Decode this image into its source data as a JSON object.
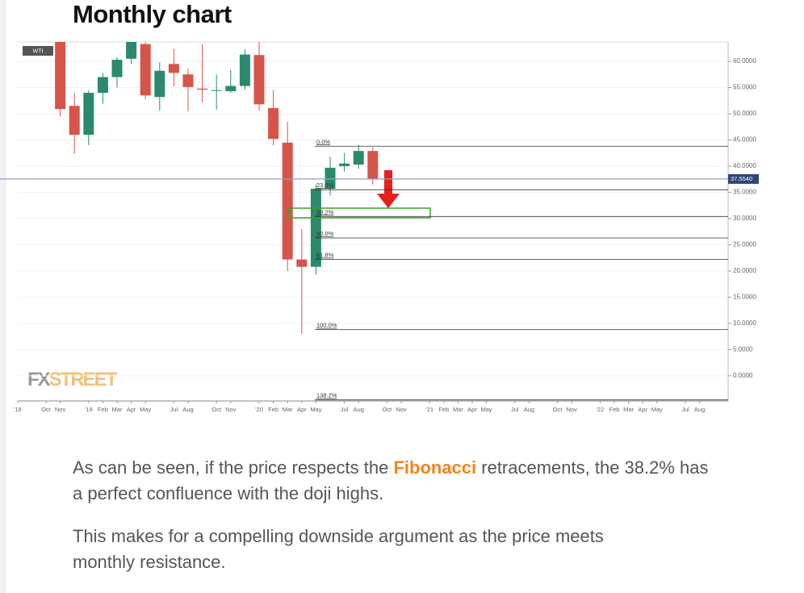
{
  "heading": "Monthly chart",
  "chart_data": {
    "type": "candlestick",
    "badge": "WTI",
    "watermark": {
      "left": "FX",
      "right": "STREET"
    },
    "categories": [
      "'18",
      null,
      "Oct",
      "Nov",
      null,
      "'19",
      "Feb",
      "Mar",
      "Apr",
      "May",
      null,
      "Jul",
      "Aug",
      null,
      "Oct",
      "Nov",
      null,
      "'20",
      "Feb",
      "Mar",
      "Apr",
      "May",
      null,
      "Jul",
      "Aug",
      null,
      "Oct",
      "Nov",
      null,
      "'21",
      "Feb",
      "Mar",
      "Apr",
      "May",
      null,
      "Jul",
      "Aug",
      null,
      "Oct",
      "Nov",
      null,
      "'22",
      "Feb",
      "Mar",
      "Apr",
      "May",
      null,
      "Jul",
      "Aug"
    ],
    "open": [
      null,
      null,
      null,
      65.0,
      51.5,
      46.0,
      54.0,
      57.0,
      60.5,
      63.3,
      53.2,
      59.5,
      57.5,
      54.8,
      54.4,
      54.3,
      55.3,
      61.2,
      51.1,
      44.5,
      22.2,
      20.8,
      35.7,
      40.0,
      40.3,
      42.9,
      null,
      null,
      null,
      null,
      null,
      null,
      null,
      null,
      null,
      null,
      null,
      null,
      null,
      null,
      null,
      null,
      null,
      null,
      null,
      null,
      null,
      null,
      null
    ],
    "high": [
      null,
      null,
      null,
      66.0,
      54.0,
      54.5,
      57.8,
      60.8,
      64.5,
      64.0,
      59.8,
      62.4,
      58.6,
      63.3,
      57.5,
      58.4,
      62.3,
      65.6,
      54.5,
      48.5,
      28.0,
      36.5,
      41.8,
      42.5,
      44.0,
      43.6,
      null,
      null,
      null,
      null,
      null,
      null,
      null,
      null,
      null,
      null,
      null,
      null,
      null,
      null,
      null,
      null,
      null,
      null,
      null,
      null,
      null,
      null,
      null
    ],
    "low": [
      null,
      null,
      null,
      49.5,
      42.4,
      44.0,
      51.9,
      55.0,
      59.5,
      52.8,
      50.6,
      55.2,
      50.5,
      52.2,
      50.8,
      54.0,
      54.6,
      50.6,
      44.0,
      20.0,
      8.0,
      19.3,
      34.4,
      39.0,
      39.5,
      36.5,
      null,
      null,
      null,
      null,
      null,
      null,
      null,
      null,
      null,
      null,
      null,
      null,
      null,
      null,
      null,
      null,
      null,
      null,
      null,
      null,
      null,
      null,
      null
    ],
    "close": [
      null,
      null,
      null,
      50.9,
      46.0,
      54.0,
      57.0,
      60.3,
      63.7,
      53.5,
      58.2,
      57.8,
      55.1,
      54.6,
      54.5,
      55.3,
      61.3,
      51.8,
      45.2,
      22.2,
      20.8,
      35.7,
      39.7,
      40.5,
      42.9,
      37.6,
      null,
      null,
      null,
      null,
      null,
      null,
      null,
      null,
      null,
      null,
      null,
      null,
      null,
      null,
      null,
      null,
      null,
      null,
      null,
      null,
      null,
      null,
      null
    ],
    "up_color": "#2b8a6d",
    "down_color": "#d5554a",
    "ylim": [
      -4.8,
      63.7
    ],
    "yticks": [
      {
        "value": 60,
        "label": "60.0000"
      },
      {
        "value": 55,
        "label": "55.0000"
      },
      {
        "value": 50,
        "label": "50.0000"
      },
      {
        "value": 45,
        "label": "45.0000"
      },
      {
        "value": 40,
        "label": "40.0000"
      },
      {
        "value": 35,
        "label": "35.0000"
      },
      {
        "value": 30,
        "label": "30.0000"
      },
      {
        "value": 25,
        "label": "25.0000"
      },
      {
        "value": 20,
        "label": "20.0000"
      },
      {
        "value": 15,
        "label": "15.0000"
      },
      {
        "value": 10,
        "label": "10.0000"
      },
      {
        "value": 5,
        "label": "5.0000"
      },
      {
        "value": 0,
        "label": "0.0000"
      }
    ],
    "current_price": {
      "value": 37.554,
      "label": "37.5540"
    },
    "fib_levels": [
      {
        "label": "0.0%",
        "value": 43.8
      },
      {
        "label": "23.6%",
        "value": 35.5
      },
      {
        "label": "38.2%",
        "value": 30.4
      },
      {
        "label": "50.0%",
        "value": 26.3
      },
      {
        "label": "61.8%",
        "value": 22.2
      },
      {
        "label": "100.0%",
        "value": 8.8
      },
      {
        "label": "138.2%",
        "value": -4.6
      }
    ]
  },
  "paragraphs": [
    [
      "As can be seen, if the price respects the ",
      "Fibonacci",
      " retracements, the 38.2% has a perfect confluence with the doji highs."
    ],
    [
      "This makes for a compelling downside argument as the price meets monthly resistance."
    ]
  ]
}
